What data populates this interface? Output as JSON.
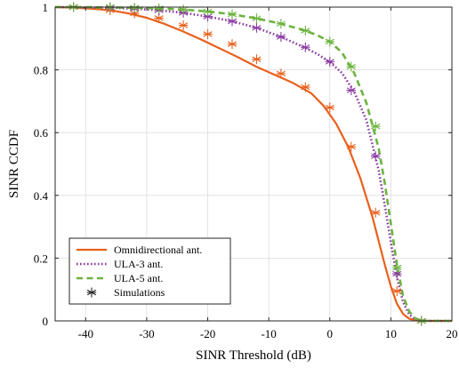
{
  "chart_data": {
    "type": "line",
    "title": "",
    "xlabel": "SINR Threshold (dB)",
    "ylabel": "SINR CCDF",
    "xlim": [
      -45,
      20
    ],
    "ylim": [
      0,
      1
    ],
    "xticks": [
      -40,
      -30,
      -20,
      -10,
      0,
      10,
      20
    ],
    "yticks": [
      0,
      0.2,
      0.4,
      0.6,
      0.8,
      1
    ],
    "ytick_labels": [
      "0",
      "0.2",
      "0.4",
      "0.6",
      "0.8",
      "1"
    ],
    "grid": true,
    "legend_position": "bottom-left",
    "legend": [
      "Omnidirectional ant.",
      "ULA-3 ant.",
      "ULA-5 ant.",
      "Simulations"
    ],
    "series": [
      {
        "name": "Omnidirectional ant.",
        "color": "#e8601c",
        "style": "solid",
        "x": [
          -45,
          -42,
          -39,
          -36,
          -33,
          -30,
          -27,
          -24,
          -21,
          -18,
          -15,
          -12,
          -9,
          -6,
          -3,
          -1,
          1,
          3,
          5,
          7,
          9,
          10,
          11,
          12,
          13,
          14,
          15,
          16,
          17,
          20
        ],
        "y": [
          1.0,
          0.998,
          0.995,
          0.99,
          0.98,
          0.966,
          0.946,
          0.922,
          0.896,
          0.868,
          0.84,
          0.81,
          0.784,
          0.758,
          0.725,
          0.685,
          0.63,
          0.555,
          0.455,
          0.33,
          0.18,
          0.11,
          0.055,
          0.022,
          0.007,
          0.002,
          0.0,
          0.0,
          0.0,
          0.0
        ]
      },
      {
        "name": "ULA-3 ant.",
        "color": "#8b3aa3",
        "style": "dotted",
        "x": [
          -45,
          -40,
          -36,
          -32,
          -28,
          -24,
          -20,
          -16,
          -12,
          -8,
          -4,
          -2,
          0,
          2,
          4,
          6,
          8,
          9,
          10,
          11,
          12,
          13,
          14,
          15,
          16,
          20
        ],
        "y": [
          1.0,
          0.999,
          0.998,
          0.995,
          0.99,
          0.982,
          0.97,
          0.955,
          0.934,
          0.905,
          0.87,
          0.85,
          0.825,
          0.79,
          0.73,
          0.64,
          0.48,
          0.37,
          0.25,
          0.14,
          0.06,
          0.02,
          0.005,
          0.001,
          0.0,
          0.0
        ]
      },
      {
        "name": "ULA-5 ant.",
        "color": "#6cb33e",
        "style": "dashed",
        "x": [
          -45,
          -40,
          -36,
          -32,
          -28,
          -24,
          -20,
          -16,
          -12,
          -8,
          -4,
          -2,
          0,
          2,
          4,
          6,
          8,
          9,
          10,
          11,
          12,
          13,
          14,
          15,
          16,
          20
        ],
        "y": [
          1.0,
          1.0,
          0.999,
          0.998,
          0.996,
          0.992,
          0.986,
          0.977,
          0.964,
          0.947,
          0.925,
          0.91,
          0.89,
          0.855,
          0.79,
          0.695,
          0.55,
          0.44,
          0.31,
          0.18,
          0.08,
          0.03,
          0.008,
          0.002,
          0.0,
          0.0
        ]
      }
    ],
    "simulations": [
      {
        "series": "Omnidirectional ant.",
        "color": "#e8601c",
        "x": [
          -42,
          -36,
          -32,
          -28,
          -24,
          -20,
          -16,
          -12,
          -8,
          -4,
          0,
          3.5,
          7.5,
          11,
          15
        ],
        "y": [
          1.0,
          0.99,
          0.98,
          0.965,
          0.942,
          0.914,
          0.882,
          0.834,
          0.788,
          0.745,
          0.68,
          0.555,
          0.345,
          0.095,
          0.0
        ]
      },
      {
        "series": "ULA-3 ant.",
        "color": "#8b3aa3",
        "x": [
          -42,
          -36,
          -32,
          -28,
          -24,
          -20,
          -16,
          -12,
          -8,
          -4,
          0,
          3.5,
          7.5,
          11,
          15
        ],
        "y": [
          1.0,
          0.998,
          0.995,
          0.99,
          0.982,
          0.97,
          0.955,
          0.934,
          0.905,
          0.872,
          0.826,
          0.735,
          0.525,
          0.15,
          0.0
        ]
      },
      {
        "series": "ULA-5 ant.",
        "color": "#6cb33e",
        "x": [
          -42,
          -36,
          -32,
          -28,
          -24,
          -20,
          -16,
          -12,
          -8,
          -4,
          0,
          3.5,
          7.5,
          11,
          15
        ],
        "y": [
          1.0,
          1.0,
          0.998,
          0.996,
          0.992,
          0.986,
          0.977,
          0.964,
          0.947,
          0.925,
          0.89,
          0.81,
          0.62,
          0.17,
          0.0
        ]
      }
    ]
  }
}
